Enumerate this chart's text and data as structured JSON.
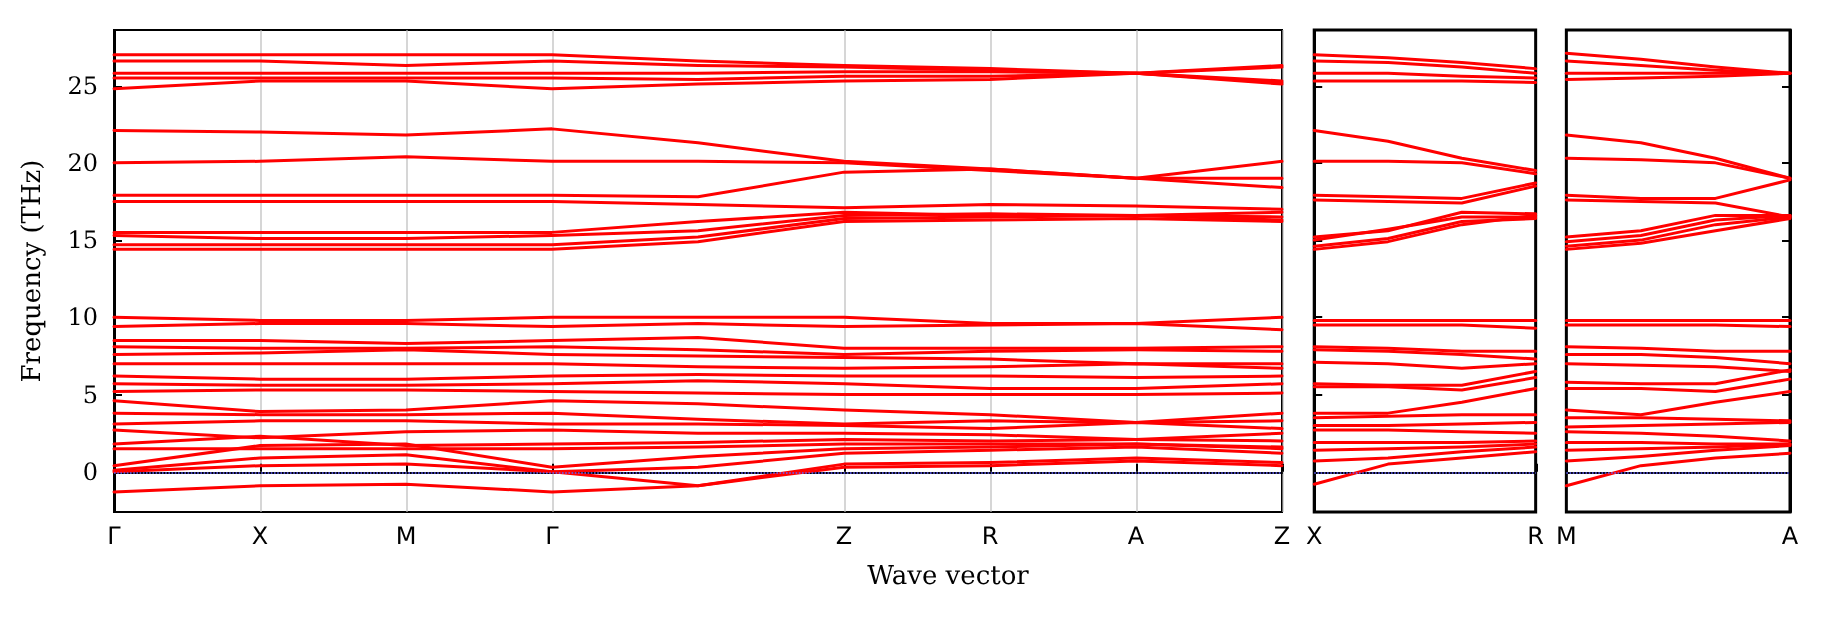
{
  "chart_data": [
    {
      "type": "line",
      "xlabel": "Wave vector",
      "ylabel": "Frequency (THz)",
      "categories": [
        "Γ",
        "X",
        "M",
        "Γ",
        null,
        "Z",
        "R",
        "A",
        "Z"
      ],
      "ylim": [
        -2.6,
        28.6
      ],
      "yticks": [
        0,
        5,
        10,
        15,
        20,
        25
      ],
      "grid": "x",
      "marker": "none",
      "line_style": "solid",
      "ref_lines": [
        {
          "axis": "y",
          "value": 0,
          "color": "#6060ff",
          "line_style": "dotted"
        }
      ],
      "series": [
        {
          "color": "#ff0000",
          "values": [
            27.0,
            27.0,
            27.0,
            27.0,
            26.6,
            26.3,
            26.1,
            25.8,
            26.3
          ]
        },
        {
          "color": "#ff0000",
          "values": [
            26.6,
            26.6,
            26.3,
            26.6,
            26.3,
            26.2,
            26.0,
            25.8,
            26.2
          ]
        },
        {
          "color": "#ff0000",
          "values": [
            25.8,
            25.8,
            25.8,
            25.8,
            25.8,
            25.9,
            25.9,
            25.8,
            25.1
          ]
        },
        {
          "color": "#ff0000",
          "values": [
            25.5,
            25.5,
            25.5,
            25.5,
            25.4,
            25.6,
            25.6,
            25.8,
            25.2
          ]
        },
        {
          "color": "#ff0000",
          "values": [
            24.8,
            25.3,
            25.3,
            24.8,
            25.1,
            25.3,
            25.4,
            25.8,
            25.3
          ]
        },
        {
          "color": "#ff0000",
          "values": [
            22.1,
            22.0,
            21.8,
            22.2,
            21.3,
            20.1,
            19.6,
            19.0,
            20.1
          ]
        },
        {
          "color": "#ff0000",
          "values": [
            20.0,
            20.1,
            20.4,
            20.1,
            20.1,
            20.0,
            19.5,
            19.0,
            18.4
          ]
        },
        {
          "color": "#ff0000",
          "values": [
            17.9,
            17.9,
            17.9,
            17.9,
            17.8,
            19.4,
            19.6,
            19.0,
            19.0
          ]
        },
        {
          "color": "#ff0000",
          "values": [
            17.5,
            17.5,
            17.5,
            17.5,
            17.3,
            17.1,
            17.3,
            17.2,
            17.0
          ]
        },
        {
          "color": "#ff0000",
          "values": [
            15.5,
            15.5,
            15.5,
            15.5,
            16.2,
            16.8,
            16.6,
            16.6,
            16.8
          ]
        },
        {
          "color": "#ff0000",
          "values": [
            15.3,
            15.1,
            15.1,
            15.3,
            15.6,
            16.6,
            16.7,
            16.6,
            16.5
          ]
        },
        {
          "color": "#ff0000",
          "values": [
            14.7,
            14.7,
            14.7,
            14.7,
            15.2,
            16.4,
            16.5,
            16.6,
            16.3
          ]
        },
        {
          "color": "#ff0000",
          "values": [
            14.4,
            14.4,
            14.4,
            14.4,
            14.9,
            16.2,
            16.3,
            16.4,
            16.2
          ]
        },
        {
          "color": "#ff0000",
          "values": [
            10.0,
            9.8,
            9.8,
            10.0,
            10.0,
            10.0,
            9.6,
            9.6,
            10.0
          ]
        },
        {
          "color": "#ff0000",
          "values": [
            9.4,
            9.6,
            9.6,
            9.4,
            9.6,
            9.4,
            9.5,
            9.6,
            9.2
          ]
        },
        {
          "color": "#ff0000",
          "values": [
            8.5,
            8.5,
            8.3,
            8.5,
            8.7,
            8.0,
            8.0,
            8.0,
            8.1
          ]
        },
        {
          "color": "#ff0000",
          "values": [
            8.1,
            8.0,
            8.0,
            8.1,
            7.9,
            7.6,
            7.8,
            7.9,
            7.8
          ]
        },
        {
          "color": "#ff0000",
          "values": [
            7.6,
            7.7,
            7.9,
            7.6,
            7.5,
            7.4,
            7.3,
            7.0,
            7.0
          ]
        },
        {
          "color": "#ff0000",
          "values": [
            7.0,
            7.0,
            7.0,
            7.0,
            6.8,
            6.7,
            6.8,
            7.0,
            6.7
          ]
        },
        {
          "color": "#ff0000",
          "values": [
            6.2,
            6.0,
            6.0,
            6.2,
            6.3,
            6.2,
            6.2,
            6.1,
            6.2
          ]
        },
        {
          "color": "#ff0000",
          "values": [
            5.7,
            5.6,
            5.6,
            5.7,
            5.9,
            5.7,
            5.4,
            5.4,
            5.7
          ]
        },
        {
          "color": "#ff0000",
          "values": [
            5.2,
            5.3,
            5.3,
            5.2,
            5.1,
            5.0,
            5.0,
            5.0,
            5.1
          ]
        },
        {
          "color": "#ff0000",
          "values": [
            4.6,
            3.9,
            4.0,
            4.6,
            4.4,
            4.0,
            3.7,
            3.2,
            3.8
          ]
        },
        {
          "color": "#ff0000",
          "values": [
            3.8,
            3.7,
            3.7,
            3.8,
            3.4,
            3.1,
            3.3,
            3.2,
            3.3
          ]
        },
        {
          "color": "#ff0000",
          "values": [
            3.1,
            3.3,
            3.3,
            3.1,
            3.1,
            3.0,
            2.8,
            3.2,
            2.8
          ]
        },
        {
          "color": "#ff0000",
          "values": [
            2.7,
            2.2,
            2.6,
            2.7,
            2.5,
            2.5,
            2.4,
            2.1,
            2.5
          ]
        },
        {
          "color": "#ff0000",
          "values": [
            1.8,
            2.3,
            1.7,
            1.8,
            1.9,
            2.1,
            2.0,
            2.1,
            2.0
          ]
        },
        {
          "color": "#ff0000",
          "values": [
            1.5,
            1.5,
            1.5,
            1.5,
            1.6,
            1.8,
            1.8,
            1.8,
            1.6
          ]
        },
        {
          "color": "#ff0000",
          "values": [
            0.4,
            1.7,
            1.8,
            0.3,
            1.0,
            1.5,
            1.6,
            1.8,
            1.5
          ]
        },
        {
          "color": "#ff0000",
          "values": [
            0.1,
            0.9,
            1.1,
            0,
            0.3,
            1.2,
            1.4,
            1.6,
            1.2
          ]
        },
        {
          "color": "#ff0000",
          "values": [
            0,
            0.4,
            0.5,
            0,
            -0.9,
            0.5,
            0.6,
            0.9,
            0.6
          ]
        },
        {
          "color": "#ff0000",
          "values": [
            -1.3,
            -0.9,
            -0.8,
            -1.3,
            -0.9,
            0.3,
            0.4,
            0.7,
            0.4
          ]
        }
      ]
    },
    {
      "type": "line",
      "categories": [
        "X",
        null,
        null,
        "R"
      ],
      "ylim": [
        -2.6,
        28.6
      ],
      "yticks": [
        0,
        5,
        10,
        15,
        20,
        25
      ],
      "tick_labels": "x",
      "marker": "none",
      "line_style": "solid",
      "ref_lines": [
        {
          "axis": "y",
          "value": 0,
          "color": "#6060ff",
          "line_style": "dotted"
        }
      ],
      "series": [
        {
          "color": "#ff0000",
          "values": [
            27.0,
            26.8,
            26.5,
            26.1
          ]
        },
        {
          "color": "#ff0000",
          "values": [
            26.6,
            26.5,
            26.2,
            25.8
          ]
        },
        {
          "color": "#ff0000",
          "values": [
            25.8,
            25.8,
            25.6,
            25.5
          ]
        },
        {
          "color": "#ff0000",
          "values": [
            25.3,
            25.3,
            25.3,
            25.2
          ]
        },
        {
          "color": "#ff0000",
          "values": [
            22.1,
            21.4,
            20.3,
            19.5
          ]
        },
        {
          "color": "#ff0000",
          "values": [
            20.1,
            20.1,
            20.0,
            19.3
          ]
        },
        {
          "color": "#ff0000",
          "values": [
            17.9,
            17.8,
            17.7,
            18.7
          ]
        },
        {
          "color": "#ff0000",
          "values": [
            17.6,
            17.5,
            17.4,
            18.5
          ]
        },
        {
          "color": "#ff0000",
          "values": [
            15.2,
            15.6,
            16.8,
            16.7
          ]
        },
        {
          "color": "#ff0000",
          "values": [
            15.0,
            15.7,
            16.5,
            16.5
          ]
        },
        {
          "color": "#ff0000",
          "values": [
            14.6,
            15.1,
            16.2,
            16.4
          ]
        },
        {
          "color": "#ff0000",
          "values": [
            14.4,
            14.9,
            16.0,
            16.6
          ]
        },
        {
          "color": "#ff0000",
          "values": [
            9.8,
            9.8,
            9.8,
            9.8
          ]
        },
        {
          "color": "#ff0000",
          "values": [
            9.5,
            9.5,
            9.5,
            9.3
          ]
        },
        {
          "color": "#ff0000",
          "values": [
            8.1,
            8.0,
            7.8,
            7.8
          ]
        },
        {
          "color": "#ff0000",
          "values": [
            7.9,
            7.8,
            7.6,
            7.3
          ]
        },
        {
          "color": "#ff0000",
          "values": [
            7.1,
            7.0,
            6.7,
            7.0
          ]
        },
        {
          "color": "#ff0000",
          "values": [
            5.7,
            5.6,
            5.6,
            6.5
          ]
        },
        {
          "color": "#ff0000",
          "values": [
            5.5,
            5.5,
            5.3,
            6.1
          ]
        },
        {
          "color": "#ff0000",
          "values": [
            3.8,
            3.8,
            4.5,
            5.4
          ]
        },
        {
          "color": "#ff0000",
          "values": [
            3.5,
            3.6,
            3.7,
            3.7
          ]
        },
        {
          "color": "#ff0000",
          "values": [
            3.0,
            3.0,
            3.1,
            3.2
          ]
        },
        {
          "color": "#ff0000",
          "values": [
            2.7,
            2.7,
            2.6,
            2.5
          ]
        },
        {
          "color": "#ff0000",
          "values": [
            1.9,
            1.9,
            1.9,
            2.0
          ]
        },
        {
          "color": "#ff0000",
          "values": [
            1.4,
            1.5,
            1.6,
            1.8
          ]
        },
        {
          "color": "#ff0000",
          "values": [
            0.7,
            0.9,
            1.3,
            1.6
          ]
        },
        {
          "color": "#ff0000",
          "values": [
            -0.8,
            0.5,
            0.9,
            1.3
          ]
        }
      ]
    },
    {
      "type": "line",
      "categories": [
        "M",
        null,
        null,
        "A"
      ],
      "ylim": [
        -2.6,
        28.6
      ],
      "yticks": [
        0,
        5,
        10,
        15,
        20,
        25
      ],
      "tick_labels": "x",
      "marker": "none",
      "line_style": "solid",
      "ref_lines": [
        {
          "axis": "y",
          "value": 0,
          "color": "#6060ff",
          "line_style": "dotted"
        }
      ],
      "series": [
        {
          "color": "#ff0000",
          "values": [
            27.1,
            26.7,
            26.2,
            25.8
          ]
        },
        {
          "color": "#ff0000",
          "values": [
            26.6,
            26.3,
            26.0,
            25.8
          ]
        },
        {
          "color": "#ff0000",
          "values": [
            25.8,
            25.8,
            25.8,
            25.8
          ]
        },
        {
          "color": "#ff0000",
          "values": [
            25.4,
            25.5,
            25.6,
            25.8
          ]
        },
        {
          "color": "#ff0000",
          "values": [
            21.8,
            21.3,
            20.3,
            19.0
          ]
        },
        {
          "color": "#ff0000",
          "values": [
            20.3,
            20.2,
            20.0,
            19.0
          ]
        },
        {
          "color": "#ff0000",
          "values": [
            17.9,
            17.7,
            17.7,
            18.9
          ]
        },
        {
          "color": "#ff0000",
          "values": [
            17.6,
            17.5,
            17.4,
            16.5
          ]
        },
        {
          "color": "#ff0000",
          "values": [
            15.2,
            15.6,
            16.6,
            16.6
          ]
        },
        {
          "color": "#ff0000",
          "values": [
            14.9,
            15.3,
            16.3,
            16.6
          ]
        },
        {
          "color": "#ff0000",
          "values": [
            14.6,
            15.0,
            16.0,
            16.5
          ]
        },
        {
          "color": "#ff0000",
          "values": [
            14.4,
            14.8,
            15.6,
            16.4
          ]
        },
        {
          "color": "#ff0000",
          "values": [
            9.8,
            9.8,
            9.8,
            9.8
          ]
        },
        {
          "color": "#ff0000",
          "values": [
            9.5,
            9.5,
            9.5,
            9.4
          ]
        },
        {
          "color": "#ff0000",
          "values": [
            8.1,
            8.0,
            7.8,
            7.8
          ]
        },
        {
          "color": "#ff0000",
          "values": [
            7.6,
            7.6,
            7.4,
            7.0
          ]
        },
        {
          "color": "#ff0000",
          "values": [
            7.0,
            6.9,
            6.8,
            6.5
          ]
        },
        {
          "color": "#ff0000",
          "values": [
            5.8,
            5.7,
            5.7,
            6.6
          ]
        },
        {
          "color": "#ff0000",
          "values": [
            5.4,
            5.4,
            5.2,
            6.0
          ]
        },
        {
          "color": "#ff0000",
          "values": [
            4.0,
            3.7,
            4.5,
            5.2
          ]
        },
        {
          "color": "#ff0000",
          "values": [
            3.5,
            3.5,
            3.4,
            3.3
          ]
        },
        {
          "color": "#ff0000",
          "values": [
            2.9,
            3.0,
            3.1,
            3.2
          ]
        },
        {
          "color": "#ff0000",
          "values": [
            2.6,
            2.5,
            2.3,
            2.0
          ]
        },
        {
          "color": "#ff0000",
          "values": [
            1.9,
            1.9,
            1.8,
            1.8
          ]
        },
        {
          "color": "#ff0000",
          "values": [
            1.4,
            1.5,
            1.6,
            1.8
          ]
        },
        {
          "color": "#ff0000",
          "values": [
            0.7,
            1.0,
            1.4,
            1.7
          ]
        },
        {
          "color": "#ff0000",
          "values": [
            -0.9,
            0.4,
            0.9,
            1.2
          ]
        }
      ]
    }
  ]
}
